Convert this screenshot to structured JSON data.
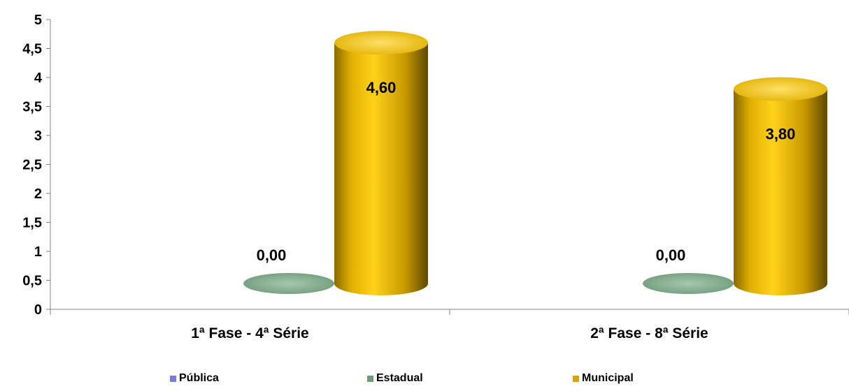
{
  "chart_data": {
    "type": "bar",
    "style": "3d-cylinder",
    "categories": [
      "1ª Fase - 4ª Série",
      "2ª Fase - 8ª Série"
    ],
    "series": [
      {
        "name": "Pública",
        "color": "#7b7bd6",
        "values": [
          null,
          null
        ],
        "labels": [
          "",
          ""
        ]
      },
      {
        "name": "Estadual",
        "color": "#6f9a7a",
        "values": [
          0.0,
          0.0
        ],
        "labels": [
          "0,00",
          "0,00"
        ]
      },
      {
        "name": "Municipal",
        "color": "#d6a500",
        "values": [
          4.6,
          3.8
        ],
        "labels": [
          "4,60",
          "3,80"
        ]
      }
    ],
    "ylim": [
      0,
      5
    ],
    "yticks": [
      0,
      0.5,
      1,
      1.5,
      2,
      2.5,
      3,
      3.5,
      4,
      4.5,
      5
    ],
    "ytick_labels": [
      "0",
      "0,5",
      "1",
      "1,5",
      "2",
      "2,5",
      "3",
      "3,5",
      "4",
      "4,5",
      "5"
    ],
    "grid": false,
    "legend_position": "bottom",
    "title": "",
    "xlabel": "",
    "ylabel": ""
  }
}
